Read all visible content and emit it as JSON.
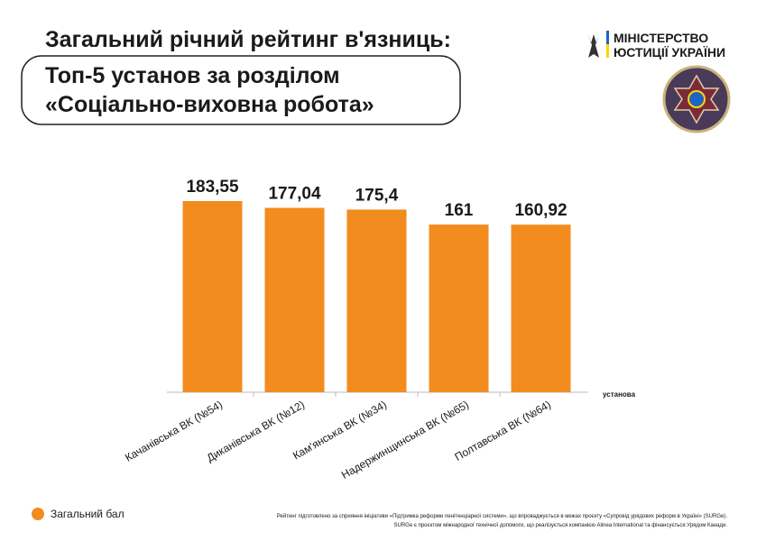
{
  "chart_data": {
    "type": "bar",
    "title": "Загальний річний рейтинг в'язниць:",
    "subtitle": [
      "Топ-5 установ за розділом",
      "«Соціально-виховна робота»"
    ],
    "x_label": "установа",
    "categories": [
      "Качанівська ВК (№54)",
      "Диканівська ВК (№12)",
      "Кам'янська ВК (№34)",
      "Надержинщинська ВК (№65)",
      "Полтавська ВК (№64)"
    ],
    "series": [
      {
        "name": "Загальний бал",
        "color": "#f28c1e",
        "values": [
          183.55,
          177.04,
          175.4,
          161,
          160.92
        ],
        "value_labels": [
          "183,55",
          "177,04",
          "175,4",
          "161",
          "160,92"
        ]
      }
    ],
    "legend": "bottom-left"
  },
  "branding": [
    "МІНІСТЕРСТВО",
    "ЮСТИЦІЇ УКРАЇНИ"
  ],
  "footnote": [
    "Рейтинг підготовлено за сприяння ініціативи «Підтримка реформи пенітенціарної системи», що впроваджується в межах проєкту «Супровід урядових реформ в Україні» (SURGe).",
    "SURGe є проєктом міжнародної технічної допомоги, що реалізується компанією Alinea International та фінансується Урядом Канади."
  ]
}
